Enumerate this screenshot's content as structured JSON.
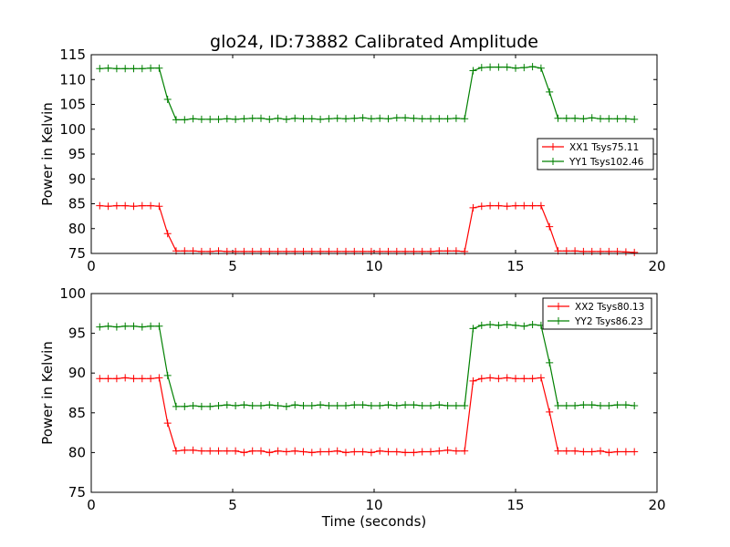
{
  "chart_data": [
    {
      "type": "line",
      "title": "glo24, ID:73882 Calibrated Amplitude",
      "xlabel": "",
      "ylabel": "Power in Kelvin",
      "xlim": [
        0,
        20
      ],
      "ylim": [
        75,
        115
      ],
      "xticks": [
        0,
        5,
        10,
        15,
        20
      ],
      "yticks": [
        75,
        80,
        85,
        90,
        95,
        100,
        105,
        110,
        115
      ],
      "legend_position": "center-right",
      "x": [
        0.3,
        0.6,
        0.9,
        1.2,
        1.5,
        1.8,
        2.1,
        2.4,
        2.7,
        3.0,
        3.3,
        3.6,
        3.9,
        4.2,
        4.5,
        4.8,
        5.1,
        5.4,
        5.7,
        6.0,
        6.3,
        6.6,
        6.9,
        7.2,
        7.5,
        7.8,
        8.1,
        8.4,
        8.7,
        9.0,
        9.3,
        9.6,
        9.9,
        10.2,
        10.5,
        10.8,
        11.1,
        11.4,
        11.7,
        12.0,
        12.3,
        12.6,
        12.9,
        13.2,
        13.5,
        13.8,
        14.1,
        14.4,
        14.7,
        15.0,
        15.3,
        15.6,
        15.9,
        16.2,
        16.5,
        16.8,
        17.1,
        17.4,
        17.7,
        18.0,
        18.3,
        18.6,
        18.9,
        19.2
      ],
      "series": [
        {
          "name": "XX1 Tsys75.11",
          "color": "#ff0000",
          "values": [
            84.6,
            84.5,
            84.6,
            84.6,
            84.5,
            84.6,
            84.6,
            84.5,
            79.0,
            75.5,
            75.5,
            75.5,
            75.4,
            75.4,
            75.5,
            75.4,
            75.4,
            75.4,
            75.4,
            75.4,
            75.4,
            75.4,
            75.4,
            75.4,
            75.4,
            75.4,
            75.4,
            75.4,
            75.4,
            75.4,
            75.4,
            75.4,
            75.4,
            75.4,
            75.4,
            75.4,
            75.4,
            75.4,
            75.4,
            75.4,
            75.5,
            75.5,
            75.5,
            75.4,
            84.2,
            84.5,
            84.6,
            84.6,
            84.5,
            84.6,
            84.6,
            84.6,
            84.6,
            80.4,
            75.5,
            75.5,
            75.5,
            75.4,
            75.4,
            75.4,
            75.4,
            75.4,
            75.3,
            75.2
          ]
        },
        {
          "name": "YY1 Tsys102.46",
          "color": "#008000",
          "values": [
            112.2,
            112.3,
            112.2,
            112.2,
            112.2,
            112.2,
            112.3,
            112.3,
            106.0,
            101.9,
            101.9,
            102.1,
            102.0,
            102.0,
            102.0,
            102.1,
            102.0,
            102.1,
            102.2,
            102.2,
            102.0,
            102.2,
            102.0,
            102.2,
            102.1,
            102.1,
            102.0,
            102.1,
            102.2,
            102.1,
            102.2,
            102.3,
            102.1,
            102.2,
            102.1,
            102.3,
            102.3,
            102.2,
            102.1,
            102.1,
            102.1,
            102.1,
            102.2,
            102.1,
            111.8,
            112.4,
            112.5,
            112.5,
            112.5,
            112.3,
            112.4,
            112.6,
            112.3,
            107.5,
            102.2,
            102.2,
            102.2,
            102.1,
            102.3,
            102.1,
            102.1,
            102.1,
            102.1,
            102.0
          ]
        }
      ]
    },
    {
      "type": "line",
      "title": "",
      "xlabel": "Time (seconds)",
      "ylabel": "Power in Kelvin",
      "xlim": [
        0,
        20
      ],
      "ylim": [
        75,
        100
      ],
      "xticks": [
        0,
        5,
        10,
        15,
        20
      ],
      "yticks": [
        75,
        80,
        85,
        90,
        95,
        100
      ],
      "legend_position": "top-right",
      "x": [
        0.3,
        0.6,
        0.9,
        1.2,
        1.5,
        1.8,
        2.1,
        2.4,
        2.7,
        3.0,
        3.3,
        3.6,
        3.9,
        4.2,
        4.5,
        4.8,
        5.1,
        5.4,
        5.7,
        6.0,
        6.3,
        6.6,
        6.9,
        7.2,
        7.5,
        7.8,
        8.1,
        8.4,
        8.7,
        9.0,
        9.3,
        9.6,
        9.9,
        10.2,
        10.5,
        10.8,
        11.1,
        11.4,
        11.7,
        12.0,
        12.3,
        12.6,
        12.9,
        13.2,
        13.5,
        13.8,
        14.1,
        14.4,
        14.7,
        15.0,
        15.3,
        15.6,
        15.9,
        16.2,
        16.5,
        16.8,
        17.1,
        17.4,
        17.7,
        18.0,
        18.3,
        18.6,
        18.9,
        19.2
      ],
      "series": [
        {
          "name": "XX2 Tsys80.13",
          "color": "#ff0000",
          "values": [
            89.3,
            89.3,
            89.3,
            89.4,
            89.3,
            89.3,
            89.3,
            89.4,
            83.7,
            80.2,
            80.3,
            80.3,
            80.2,
            80.2,
            80.2,
            80.2,
            80.2,
            80.0,
            80.2,
            80.2,
            80.0,
            80.2,
            80.1,
            80.2,
            80.1,
            80.0,
            80.1,
            80.1,
            80.2,
            80.0,
            80.1,
            80.1,
            80.0,
            80.2,
            80.1,
            80.1,
            80.0,
            80.0,
            80.1,
            80.1,
            80.2,
            80.3,
            80.2,
            80.2,
            89.0,
            89.3,
            89.4,
            89.3,
            89.4,
            89.3,
            89.3,
            89.3,
            89.4,
            85.1,
            80.2,
            80.2,
            80.2,
            80.1,
            80.1,
            80.2,
            80.0,
            80.1,
            80.1,
            80.1
          ]
        },
        {
          "name": "YY2 Tsys86.23",
          "color": "#008000",
          "values": [
            95.8,
            95.9,
            95.8,
            95.9,
            95.9,
            95.8,
            95.9,
            95.9,
            89.7,
            85.8,
            85.8,
            85.9,
            85.8,
            85.8,
            85.9,
            86.0,
            85.9,
            86.0,
            85.9,
            85.9,
            86.0,
            85.9,
            85.8,
            86.0,
            85.9,
            85.9,
            86.0,
            85.9,
            85.9,
            85.9,
            86.0,
            86.0,
            85.9,
            85.9,
            86.0,
            85.9,
            86.0,
            86.0,
            85.9,
            85.9,
            86.0,
            85.9,
            85.9,
            85.9,
            95.6,
            96.0,
            96.1,
            96.0,
            96.1,
            96.0,
            95.9,
            96.1,
            96.0,
            91.3,
            85.9,
            85.9,
            85.9,
            86.0,
            86.0,
            85.9,
            85.9,
            86.0,
            86.0,
            85.9
          ]
        }
      ]
    }
  ]
}
